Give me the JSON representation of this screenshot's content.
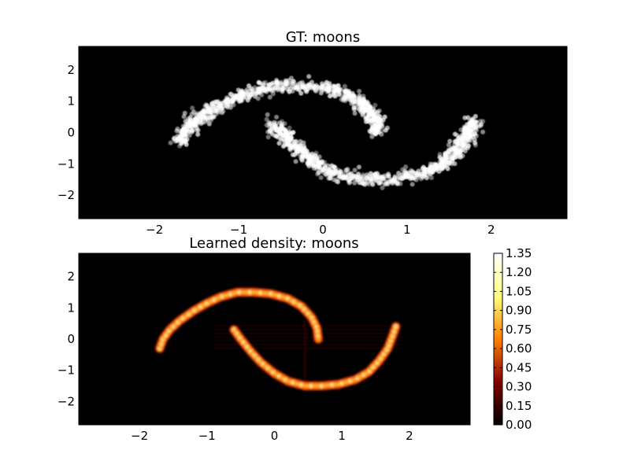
{
  "chart_data": [
    {
      "type": "scatter",
      "title": "GT: moons",
      "xlim": [
        -2.9,
        2.9
      ],
      "ylim": [
        -2.75,
        2.75
      ],
      "xticks": [
        "−2",
        "−1",
        "0",
        "1",
        "2"
      ],
      "yticks": [
        "2",
        "1",
        "0",
        "−1",
        "−2"
      ],
      "background": "#000000",
      "point_color": "#ffffff",
      "series": [
        {
          "points": [
            [
              -1.7,
              -0.3
            ],
            [
              -1.65,
              0.0
            ],
            [
              -1.55,
              0.3
            ],
            [
              -1.4,
              0.6
            ],
            [
              -1.2,
              0.9
            ],
            [
              -1.0,
              1.15
            ],
            [
              -0.8,
              1.35
            ],
            [
              -0.55,
              1.5
            ],
            [
              -0.3,
              1.5
            ],
            [
              -0.05,
              1.45
            ],
            [
              0.2,
              1.3
            ],
            [
              0.4,
              1.05
            ],
            [
              0.55,
              0.7
            ],
            [
              0.63,
              0.35
            ],
            [
              0.65,
              0.0
            ]
          ]
        },
        {
          "points": [
            [
              -0.6,
              0.3
            ],
            [
              -0.5,
              0.0
            ],
            [
              -0.35,
              -0.4
            ],
            [
              -0.2,
              -0.75
            ],
            [
              0.0,
              -1.1
            ],
            [
              0.2,
              -1.35
            ],
            [
              0.45,
              -1.5
            ],
            [
              0.7,
              -1.5
            ],
            [
              0.95,
              -1.45
            ],
            [
              1.2,
              -1.3
            ],
            [
              1.4,
              -1.05
            ],
            [
              1.55,
              -0.7
            ],
            [
              1.68,
              -0.3
            ],
            [
              1.75,
              0.1
            ],
            [
              1.8,
              0.4
            ]
          ]
        }
      ]
    },
    {
      "type": "heatmap",
      "title": "Learned density: moons",
      "xlim": [
        -2.9,
        2.9
      ],
      "ylim": [
        -2.75,
        2.75
      ],
      "xticks": [
        "−2",
        "−1",
        "0",
        "1",
        "2"
      ],
      "yticks": [
        "2",
        "1",
        "0",
        "−1",
        "−2"
      ],
      "colormap": "afmhot",
      "colorbar": {
        "min": 0.0,
        "max": 1.35,
        "ticks": [
          "1.35",
          "1.20",
          "1.05",
          "0.90",
          "0.75",
          "0.60",
          "0.45",
          "0.30",
          "0.15",
          "0.00"
        ]
      },
      "series": [
        {
          "points": [
            [
              -1.7,
              -0.3
            ],
            [
              -1.65,
              0.0
            ],
            [
              -1.55,
              0.3
            ],
            [
              -1.4,
              0.6
            ],
            [
              -1.2,
              0.9
            ],
            [
              -1.0,
              1.15
            ],
            [
              -0.8,
              1.35
            ],
            [
              -0.55,
              1.5
            ],
            [
              -0.3,
              1.5
            ],
            [
              -0.05,
              1.45
            ],
            [
              0.2,
              1.3
            ],
            [
              0.4,
              1.05
            ],
            [
              0.55,
              0.7
            ],
            [
              0.63,
              0.35
            ],
            [
              0.65,
              0.0
            ]
          ]
        },
        {
          "points": [
            [
              -0.6,
              0.3
            ],
            [
              -0.5,
              0.0
            ],
            [
              -0.35,
              -0.4
            ],
            [
              -0.2,
              -0.75
            ],
            [
              0.0,
              -1.1
            ],
            [
              0.2,
              -1.35
            ],
            [
              0.45,
              -1.5
            ],
            [
              0.7,
              -1.5
            ],
            [
              0.95,
              -1.45
            ],
            [
              1.2,
              -1.3
            ],
            [
              1.4,
              -1.05
            ],
            [
              1.55,
              -0.7
            ],
            [
              1.68,
              -0.3
            ],
            [
              1.75,
              0.1
            ],
            [
              1.8,
              0.4
            ]
          ]
        }
      ]
    }
  ]
}
